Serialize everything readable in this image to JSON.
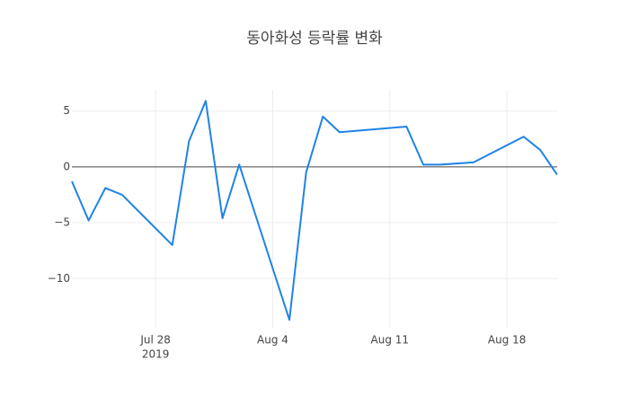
{
  "chart_data": {
    "type": "line",
    "title": "동아화성 등락률 변화",
    "x": [
      "2019-07-23",
      "2019-07-24",
      "2019-07-25",
      "2019-07-26",
      "2019-07-29",
      "2019-07-30",
      "2019-07-31",
      "2019-08-01",
      "2019-08-02",
      "2019-08-05",
      "2019-08-06",
      "2019-08-07",
      "2019-08-08",
      "2019-08-12",
      "2019-08-13",
      "2019-08-14",
      "2019-08-16",
      "2019-08-19",
      "2019-08-20",
      "2019-08-21"
    ],
    "values": [
      -1.3,
      -4.8,
      -1.9,
      -2.5,
      -7.0,
      2.3,
      5.9,
      -4.6,
      0.2,
      -13.7,
      -0.5,
      4.5,
      3.1,
      3.6,
      0.2,
      0.2,
      0.4,
      2.7,
      1.5,
      -0.7
    ],
    "color": "#1f83e6",
    "xlim": [
      "2019-07-23",
      "2019-08-21"
    ],
    "xticks": [
      {
        "value": "2019-07-28",
        "label": "Jul 28",
        "year": "2019"
      },
      {
        "value": "2019-08-04",
        "label": "Aug 4"
      },
      {
        "value": "2019-08-11",
        "label": "Aug 11"
      },
      {
        "value": "2019-08-18",
        "label": "Aug 18"
      }
    ],
    "ylim": [
      -14.4,
      6.9
    ],
    "yticks": [
      {
        "value": -10,
        "label": "−10"
      },
      {
        "value": -5,
        "label": "−5"
      },
      0,
      5
    ],
    "grid": true
  }
}
